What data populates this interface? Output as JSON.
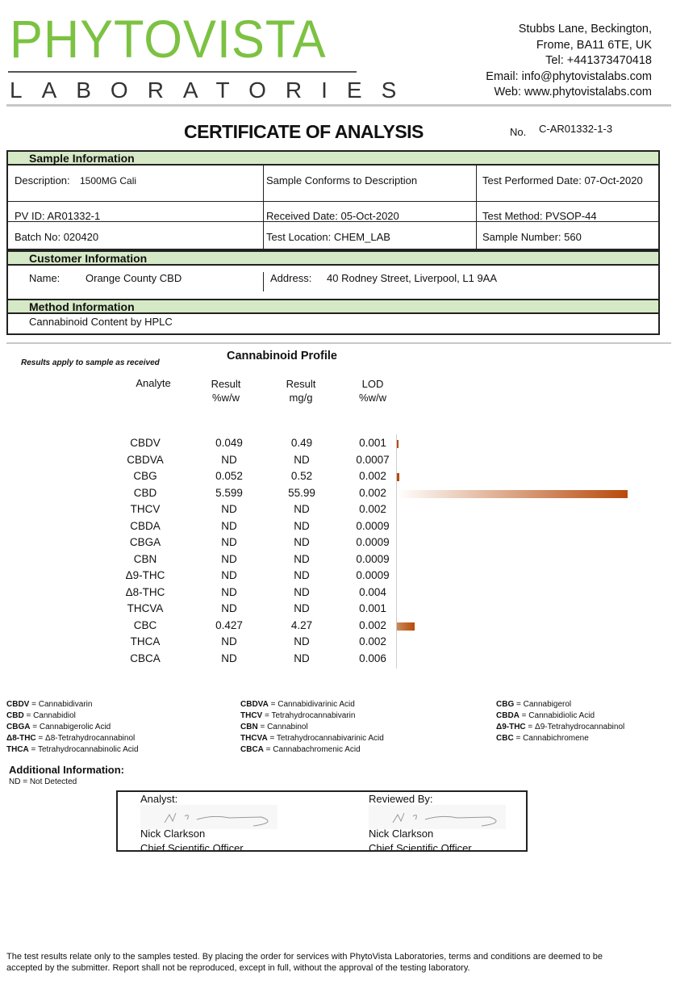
{
  "header": {
    "logo_main": "PHYTOVISTA",
    "logo_sub": "LABORATORIES",
    "address": [
      "Stubbs Lane, Beckington,",
      "Frome, BA11 6TE, UK",
      "Tel: +441373470418",
      "Email: info@phytovistalabs.com",
      "Web: www.phytovistalabs.com"
    ]
  },
  "title": "CERTIFICATE OF ANALYSIS",
  "no_label": "No.",
  "certificate_no": "C-AR01332-1-3",
  "sample": {
    "heading": "Sample Information",
    "description_label": "Description:",
    "description": "1500MG Cali",
    "conforms": "Sample Conforms to Description",
    "test_date": "Test Performed Date: 07-Oct-2020",
    "pv_id": "PV ID: AR01332-1",
    "received": "Received Date:  05-Oct-2020",
    "test_method": "Test Method: PVSOP-44",
    "batch": "Batch No: 020420",
    "location": "Test Location: CHEM_LAB",
    "sample_number": "Sample Number:  560"
  },
  "customer": {
    "heading": "Customer Information",
    "name_label": "Name:",
    "name": "Orange County CBD",
    "address_label": "Address:",
    "address": "40 Rodney Street, Liverpool, L1 9AA"
  },
  "method": {
    "heading": "Method Information",
    "text": "Cannabinoid Content by HPLC"
  },
  "results_note": "Results apply to sample as received",
  "profile_title": "Cannabinoid Profile",
  "columns": {
    "analyte": "Analyte",
    "result_pct": "Result\n%w/w",
    "result_mg": "Result\nmg/g",
    "lod": "LOD\n%w/w"
  },
  "bar_colors": {
    "start": "#ffffff",
    "end": "#b84a0b"
  },
  "rows": [
    {
      "analyte": "CBDV",
      "pct": "0.049",
      "mg": "0.49",
      "lod": "0.001"
    },
    {
      "analyte": "CBDVA",
      "pct": "ND",
      "mg": "ND",
      "lod": "0.0007"
    },
    {
      "analyte": "CBG",
      "pct": "0.052",
      "mg": "0.52",
      "lod": "0.002"
    },
    {
      "analyte": "CBD",
      "pct": "5.599",
      "mg": "55.99",
      "lod": "0.002"
    },
    {
      "analyte": "THCV",
      "pct": "ND",
      "mg": "ND",
      "lod": "0.002"
    },
    {
      "analyte": "CBDA",
      "pct": "ND",
      "mg": "ND",
      "lod": "0.0009"
    },
    {
      "analyte": "CBGA",
      "pct": "ND",
      "mg": "ND",
      "lod": "0.0009"
    },
    {
      "analyte": "CBN",
      "pct": "ND",
      "mg": "ND",
      "lod": "0.0009"
    },
    {
      "analyte": "Δ9-THC",
      "pct": "ND",
      "mg": "ND",
      "lod": "0.0009"
    },
    {
      "analyte": "Δ8-THC",
      "pct": "ND",
      "mg": "ND",
      "lod": "0.004"
    },
    {
      "analyte": "THCVA",
      "pct": "ND",
      "mg": "ND",
      "lod": "0.001"
    },
    {
      "analyte": "CBC",
      "pct": "0.427",
      "mg": "4.27",
      "lod": "0.002"
    },
    {
      "analyte": "THCA",
      "pct": "ND",
      "mg": "ND",
      "lod": "0.002"
    },
    {
      "analyte": "CBCA",
      "pct": "ND",
      "mg": "ND",
      "lod": "0.006"
    }
  ],
  "glossary": [
    [
      {
        "abbr": "CBDV",
        "full": " = Cannabidivarin"
      },
      {
        "abbr": "CBD",
        "full": " = Cannabidiol"
      },
      {
        "abbr": "CBGA",
        "full": " = Cannabigerolic Acid"
      },
      {
        "abbr": "Δ8-THC",
        "full": " = Δ8-Tetrahydrocannabinol"
      },
      {
        "abbr": "THCA",
        "full": " = Tetrahydrocannabinolic Acid"
      }
    ],
    [
      {
        "abbr": "CBDVA",
        "full": " = Cannabidivarinic Acid"
      },
      {
        "abbr": "THCV",
        "full": " = Tetrahydrocannabivarin"
      },
      {
        "abbr": "CBN",
        "full": " = Cannabinol"
      },
      {
        "abbr": "THCVA",
        "full": " = Tetrahydrocannabivarinic Acid"
      },
      {
        "abbr": "CBCA",
        "full": " = Cannabachromenic Acid"
      }
    ],
    [
      {
        "abbr": "CBG",
        "full": " = Cannabigerol"
      },
      {
        "abbr": "CBDA",
        "full": " = Cannabidiolic Acid"
      },
      {
        "abbr": "Δ9-THC",
        "full": " = Δ9-Tetrahydrocannabinol"
      },
      {
        "abbr": "CBC",
        "full": " = Cannabichromene"
      }
    ]
  ],
  "additional": {
    "heading": "Additional Information:",
    "text": "ND = Not Detected"
  },
  "signatures": {
    "analyst_label": "Analyst:",
    "analyst_name": "Nick Clarkson",
    "analyst_title": "Chief Scientific Officer",
    "reviewer_label": "Reviewed By:",
    "reviewer_name": "Nick Clarkson",
    "reviewer_title": "Chief Scientific Officer"
  },
  "footer": "The test results relate only to the samples tested.  By placing the order for services with PhytoVista Laboratories, terms and conditions are deemed to be accepted by the submitter. Report shall not be reproduced, except in full, without the approval of the testing laboratory."
}
